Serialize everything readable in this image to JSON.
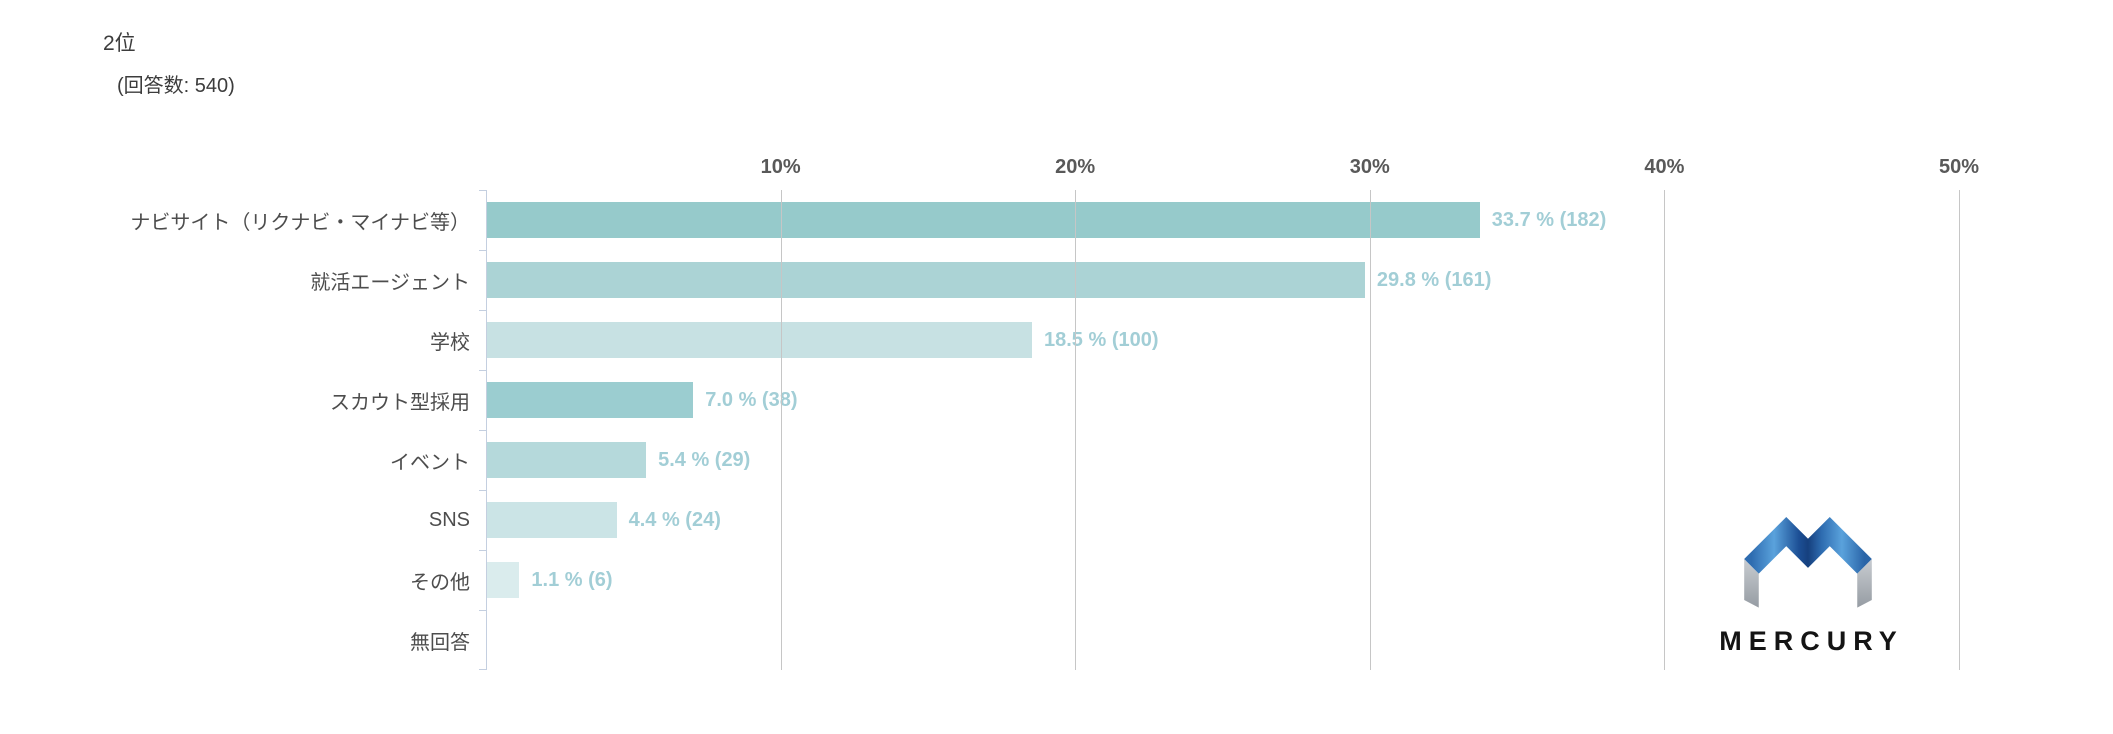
{
  "header": {
    "title": "2位",
    "subtitle": "(回答数: 540)"
  },
  "chart_data": {
    "type": "bar",
    "orientation": "horizontal",
    "title": "2位",
    "responses_note": "(回答数: 540)",
    "total_responses": 540,
    "categories": [
      "ナビサイト（リクナビ・マイナビ等）",
      "就活エージェント",
      "学校",
      "スカウト型採用",
      "イベント",
      "SNS",
      "その他",
      "無回答"
    ],
    "values": [
      33.7,
      29.8,
      18.5,
      7.0,
      5.4,
      4.4,
      1.1,
      0
    ],
    "counts": [
      182,
      161,
      100,
      38,
      29,
      24,
      6,
      0
    ],
    "value_labels": [
      "33.7 % (182)",
      "29.8 % (161)",
      "18.5 % (100)",
      "7.0 % (38)",
      "5.4 % (29)",
      "4.4 % (24)",
      "1.1 % (6)",
      ""
    ],
    "bar_colors": [
      "#96cacb",
      "#abd3d5",
      "#c7e1e3",
      "#9bcdd0",
      "#b5d9db",
      "#cbe4e6",
      "#daeced",
      null
    ],
    "x_ticks": [
      {
        "label": "10%",
        "value": 10
      },
      {
        "label": "20%",
        "value": 20
      },
      {
        "label": "30%",
        "value": 30
      },
      {
        "label": "40%",
        "value": 40
      },
      {
        "label": "50%",
        "value": 50
      }
    ],
    "xlim": [
      0,
      50
    ],
    "grid": true,
    "legend": false,
    "xlabel": "",
    "ylabel": "",
    "value_label_color": "#a2ced6",
    "axis_color": "#c4cfe0",
    "gridline_color": "#c6c6c6"
  },
  "logo": {
    "brand": "MERCURY",
    "mark": "mercury-m-mark",
    "mark_blue_dark": "#1c4f95",
    "mark_blue_light": "#5aa2dc",
    "mark_gray_light": "#c8ccd1",
    "mark_gray_dark": "#969ca3",
    "text_color": "#141414"
  }
}
